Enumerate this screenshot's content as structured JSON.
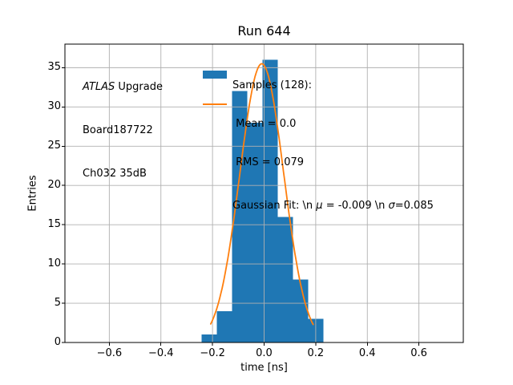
{
  "chart_data": {
    "type": "histogram",
    "title": "Run 644",
    "xlabel": "time [ns]",
    "ylabel": "Entries",
    "xlim": [
      -0.772,
      0.772
    ],
    "ylim": [
      0,
      38
    ],
    "grid": true,
    "grid_color": "#b0b0b0",
    "xticks": [
      {
        "v": -0.6,
        "label": "−0.6"
      },
      {
        "v": -0.4,
        "label": "−0.4"
      },
      {
        "v": -0.2,
        "label": "−0.2"
      },
      {
        "v": 0.0,
        "label": "0.0"
      },
      {
        "v": 0.2,
        "label": "0.2"
      },
      {
        "v": 0.4,
        "label": "0.4"
      },
      {
        "v": 0.6,
        "label": "0.6"
      }
    ],
    "yticks": [
      {
        "v": 0,
        "label": "0"
      },
      {
        "v": 5,
        "label": "5"
      },
      {
        "v": 10,
        "label": "10"
      },
      {
        "v": 15,
        "label": "15"
      },
      {
        "v": 20,
        "label": "20"
      },
      {
        "v": 25,
        "label": "25"
      },
      {
        "v": 30,
        "label": "30"
      },
      {
        "v": 35,
        "label": "35"
      }
    ],
    "histogram": {
      "bin_start": -0.242,
      "bin_width": 0.059,
      "counts": [
        1,
        4,
        32,
        28,
        36,
        16,
        8,
        3
      ],
      "total_samples": 128,
      "color": "#1f77b4"
    },
    "gaussian_fit": {
      "mu": -0.009,
      "sigma": 0.085,
      "amplitude": 35.5,
      "x_min": -0.207,
      "x_max": 0.19,
      "color": "#ff7f0e"
    }
  },
  "annotation": {
    "atlas_italic": "ATLAS",
    "atlas_rest": " Upgrade",
    "line2": "Board187722",
    "line3": "Ch032 35dB"
  },
  "legend": {
    "samples": {
      "line1": "Samples (128):",
      "line2": " Mean = 0.0",
      "line3": " RMS = 0.079",
      "swatch_color": "#1f77b4"
    },
    "gaussian": {
      "prefix": "Gaussian Fit: \\n ",
      "mu_symbol": "μ",
      "mid": " = -0.009 \\n ",
      "sigma_symbol": "σ",
      "suffix": "=0.085",
      "line_color": "#ff7f0e"
    }
  }
}
